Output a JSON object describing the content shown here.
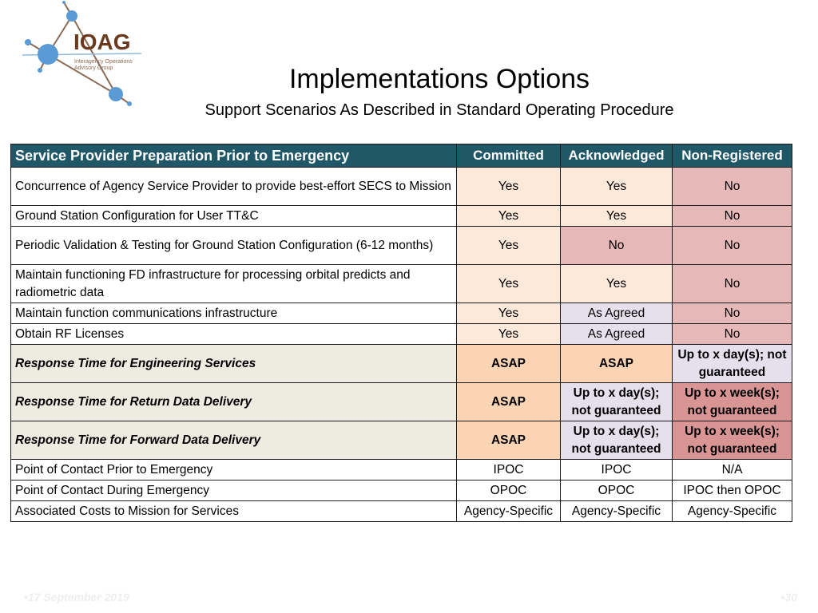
{
  "logo": {
    "text": "IOAG",
    "subtext": "Interagency Operations Advisory Group"
  },
  "header": {
    "title": "Implementations Options",
    "subtitle": "Support Scenarios As Described in Standard Operating Procedure"
  },
  "table": {
    "columns": [
      "Service Provider Preparation Prior to Emergency",
      "Committed",
      "Acknowledged",
      "Non-Registered"
    ],
    "tone_colors": {
      "p1": "#fde9d9",
      "p2": "#fbd4b4",
      "l": "#e5e0ec",
      "r1": "#e6b9b8",
      "r2": "#d99594",
      "header": "#215868"
    },
    "rows": [
      {
        "label": "Concurrence of Agency Service Provider to provide best-effort SECS to Mission",
        "emphasis": false,
        "cells": [
          {
            "text": "Yes",
            "tone": "p1"
          },
          {
            "text": "Yes",
            "tone": "p1"
          },
          {
            "text": "No",
            "tone": "r1"
          }
        ]
      },
      {
        "label": "Ground Station Configuration for User TT&C",
        "emphasis": false,
        "cells": [
          {
            "text": "Yes",
            "tone": "p1"
          },
          {
            "text": "Yes",
            "tone": "p1"
          },
          {
            "text": "No",
            "tone": "r1"
          }
        ]
      },
      {
        "label": "Periodic Validation & Testing for Ground Station Configuration (6-12 months)",
        "emphasis": false,
        "cells": [
          {
            "text": "Yes",
            "tone": "p1"
          },
          {
            "text": "No",
            "tone": "r1"
          },
          {
            "text": "No",
            "tone": "r1"
          }
        ]
      },
      {
        "label": "Maintain functioning FD infrastructure for processing orbital predicts and radiometric data",
        "emphasis": false,
        "cells": [
          {
            "text": "Yes",
            "tone": "p1"
          },
          {
            "text": "Yes",
            "tone": "p1"
          },
          {
            "text": "No",
            "tone": "r1"
          }
        ]
      },
      {
        "label": "Maintain function communications infrastructure",
        "emphasis": false,
        "cells": [
          {
            "text": "Yes",
            "tone": "p1"
          },
          {
            "text": "As Agreed",
            "tone": "l"
          },
          {
            "text": "No",
            "tone": "r1"
          }
        ]
      },
      {
        "label": "Obtain RF Licenses",
        "emphasis": false,
        "cells": [
          {
            "text": "Yes",
            "tone": "p1"
          },
          {
            "text": "As Agreed",
            "tone": "l"
          },
          {
            "text": "No",
            "tone": "r1"
          }
        ]
      },
      {
        "label": "Response Time for Engineering Services",
        "emphasis": true,
        "cells": [
          {
            "text": "ASAP",
            "tone": "p2"
          },
          {
            "text": "ASAP",
            "tone": "p2"
          },
          {
            "text": "Up to x day(s); not guaranteed",
            "tone": "l"
          }
        ]
      },
      {
        "label": "Response Time for Return Data Delivery",
        "emphasis": true,
        "cells": [
          {
            "text": "ASAP",
            "tone": "p2"
          },
          {
            "text": "Up to x day(s); not guaranteed",
            "tone": "l"
          },
          {
            "text": "Up to x week(s); not guaranteed",
            "tone": "r2"
          }
        ]
      },
      {
        "label": "Response Time for Forward Data Delivery",
        "emphasis": true,
        "cells": [
          {
            "text": "ASAP",
            "tone": "p2"
          },
          {
            "text": "Up to x day(s); not guaranteed",
            "tone": "l"
          },
          {
            "text": "Up to x week(s); not guaranteed",
            "tone": "r2"
          }
        ]
      },
      {
        "label": "Point of Contact Prior to Emergency",
        "emphasis": false,
        "cells": [
          {
            "text": "IPOC",
            "tone": "w"
          },
          {
            "text": "IPOC",
            "tone": "w"
          },
          {
            "text": "N/A",
            "tone": "w"
          }
        ]
      },
      {
        "label": "Point of Contact During Emergency",
        "emphasis": false,
        "cells": [
          {
            "text": "OPOC",
            "tone": "w"
          },
          {
            "text": "OPOC",
            "tone": "w"
          },
          {
            "text": "IPOC then OPOC",
            "tone": "w"
          }
        ]
      },
      {
        "label": "Associated Costs to Mission for Services",
        "emphasis": false,
        "cells": [
          {
            "text": "Agency-Specific",
            "tone": "w"
          },
          {
            "text": "Agency-Specific",
            "tone": "w"
          },
          {
            "text": "Agency-Specific",
            "tone": "w"
          }
        ]
      }
    ]
  },
  "footer": {
    "date": "17 September 2019",
    "page": "30"
  }
}
